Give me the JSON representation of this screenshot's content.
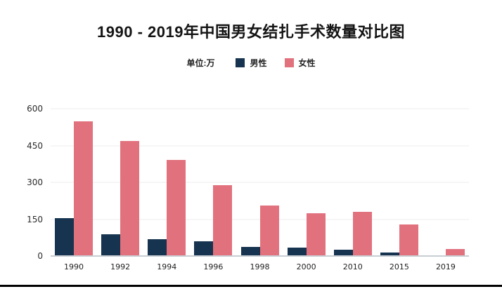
{
  "chart_data": {
    "type": "bar",
    "title": "1990 - 2019年中国男女结扎手术数量对比图",
    "unit_label": "单位:万",
    "categories": [
      "1990",
      "1992",
      "1994",
      "1996",
      "1998",
      "2000",
      "2010",
      "2015",
      "2019"
    ],
    "series": [
      {
        "name": "男性",
        "color": "#16334F",
        "values": [
          153,
          90,
          70,
          59,
          36,
          33,
          25,
          15,
          4
        ]
      },
      {
        "name": "女性",
        "color": "#E2717E",
        "values": [
          548,
          470,
          392,
          290,
          207,
          175,
          180,
          129,
          28
        ]
      }
    ],
    "ylabel": "",
    "xlabel": "",
    "ylim": [
      0,
      600
    ],
    "y_ticks": [
      0,
      150,
      300,
      450,
      600
    ],
    "grid": true,
    "legend_position": "top-center",
    "colors": {
      "background": "#ffffff",
      "title_text": "#141414",
      "tick_text": "#2b2b2b",
      "gridline": "#ededed",
      "axis_line": "#c9cdd2",
      "bottom_border": "#000000"
    }
  }
}
